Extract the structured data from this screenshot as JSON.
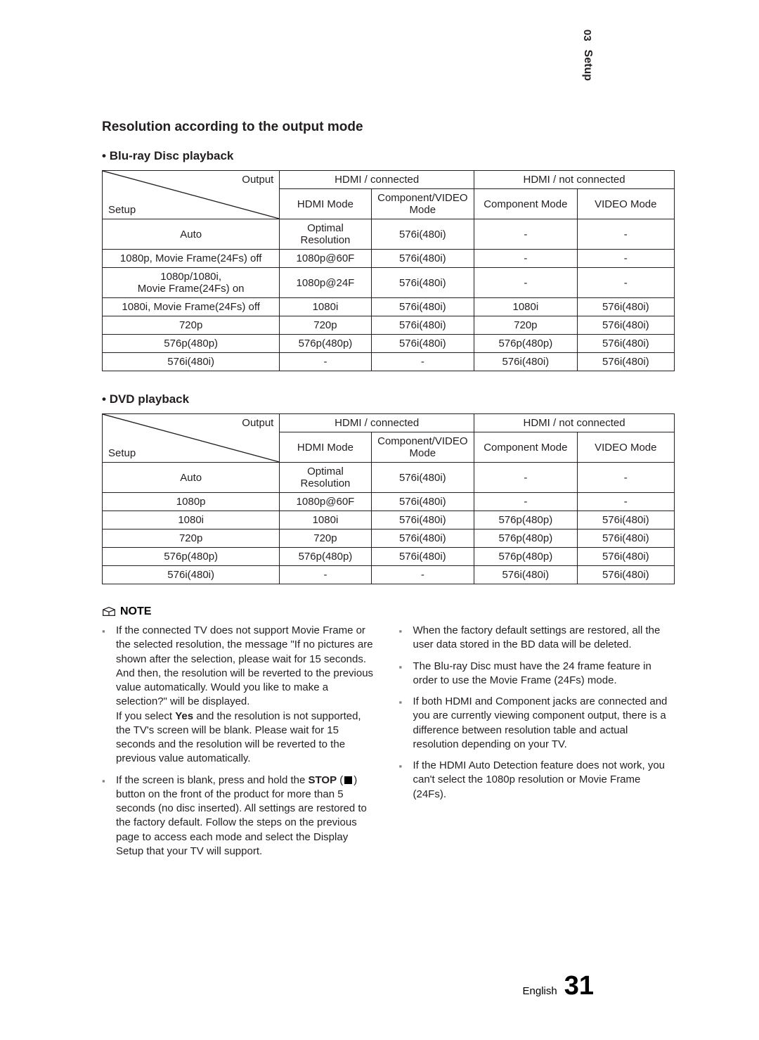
{
  "chapter": {
    "num": "03",
    "name": "Setup"
  },
  "title": "Resolution according to the output mode",
  "tableHeaders": {
    "corner_output": "Output",
    "corner_setup": "Setup",
    "hdmi_connected": "HDMI / connected",
    "hdmi_not_connected": "HDMI / not connected",
    "hdmi_mode": "HDMI Mode",
    "comp_video_mode": "Component/VIDEO Mode",
    "comp_mode": "Component Mode",
    "video_mode": "VIDEO Mode"
  },
  "bluray": {
    "caption": "Blu-ray Disc playback",
    "rows": [
      {
        "setup": "Auto",
        "c": [
          "Optimal Resolution",
          "576i(480i)",
          "-",
          "-"
        ]
      },
      {
        "setup": "1080p, Movie Frame(24Fs) off",
        "c": [
          "1080p@60F",
          "576i(480i)",
          "-",
          "-"
        ]
      },
      {
        "setup": "1080p/1080i,\nMovie Frame(24Fs) on",
        "c": [
          "1080p@24F",
          "576i(480i)",
          "-",
          "-"
        ]
      },
      {
        "setup": "1080i, Movie Frame(24Fs) off",
        "c": [
          "1080i",
          "576i(480i)",
          "1080i",
          "576i(480i)"
        ]
      },
      {
        "setup": "720p",
        "c": [
          "720p",
          "576i(480i)",
          "720p",
          "576i(480i)"
        ]
      },
      {
        "setup": "576p(480p)",
        "c": [
          "576p(480p)",
          "576i(480i)",
          "576p(480p)",
          "576i(480i)"
        ]
      },
      {
        "setup": "576i(480i)",
        "c": [
          "-",
          "-",
          "576i(480i)",
          "576i(480i)"
        ]
      }
    ]
  },
  "dvd": {
    "caption": "DVD playback",
    "rows": [
      {
        "setup": "Auto",
        "c": [
          "Optimal Resolution",
          "576i(480i)",
          "-",
          "-"
        ]
      },
      {
        "setup": "1080p",
        "c": [
          "1080p@60F",
          "576i(480i)",
          "-",
          "-"
        ]
      },
      {
        "setup": "1080i",
        "c": [
          "1080i",
          "576i(480i)",
          "576p(480p)",
          "576i(480i)"
        ]
      },
      {
        "setup": "720p",
        "c": [
          "720p",
          "576i(480i)",
          "576p(480p)",
          "576i(480i)"
        ]
      },
      {
        "setup": "576p(480p)",
        "c": [
          "576p(480p)",
          "576i(480i)",
          "576p(480p)",
          "576i(480i)"
        ]
      },
      {
        "setup": "576i(480i)",
        "c": [
          "-",
          "-",
          "576i(480i)",
          "576i(480i)"
        ]
      }
    ]
  },
  "noteLabel": "NOTE",
  "notes": {
    "left": [
      "If the connected TV does not support Movie Frame or the selected resolution, the message \"If no pictures are shown after the selection, please wait for 15 seconds. And then, the resolution will be reverted to the previous value automatically. Would you like to make a selection?\" will be displayed.\nIf you select Yes and the resolution is not supported, the TV's screen will be blank. Please wait for 15 seconds and the resolution will be reverted to the previous value automatically.",
      "If the screen is blank, press and hold the STOP (■) button on the front of the product for more than 5 seconds (no disc inserted). All settings are restored to the factory default. Follow the steps on the previous page to access each mode and select the Display Setup that your TV will support."
    ],
    "right": [
      "When the factory default settings are restored, all the user data stored in the BD data will be deleted.",
      "The Blu-ray Disc must have the 24 frame feature in order to use the Movie Frame (24Fs) mode.",
      "If both HDMI and Component jacks are connected and you are currently viewing component output, there is a difference between resolution table and actual resolution depending on your TV.",
      "If the HDMI Auto Detection feature does not work, you can't select the 1080p resolution or Movie Frame (24Fs)."
    ]
  },
  "footer": {
    "lang": "English",
    "page": "31"
  }
}
